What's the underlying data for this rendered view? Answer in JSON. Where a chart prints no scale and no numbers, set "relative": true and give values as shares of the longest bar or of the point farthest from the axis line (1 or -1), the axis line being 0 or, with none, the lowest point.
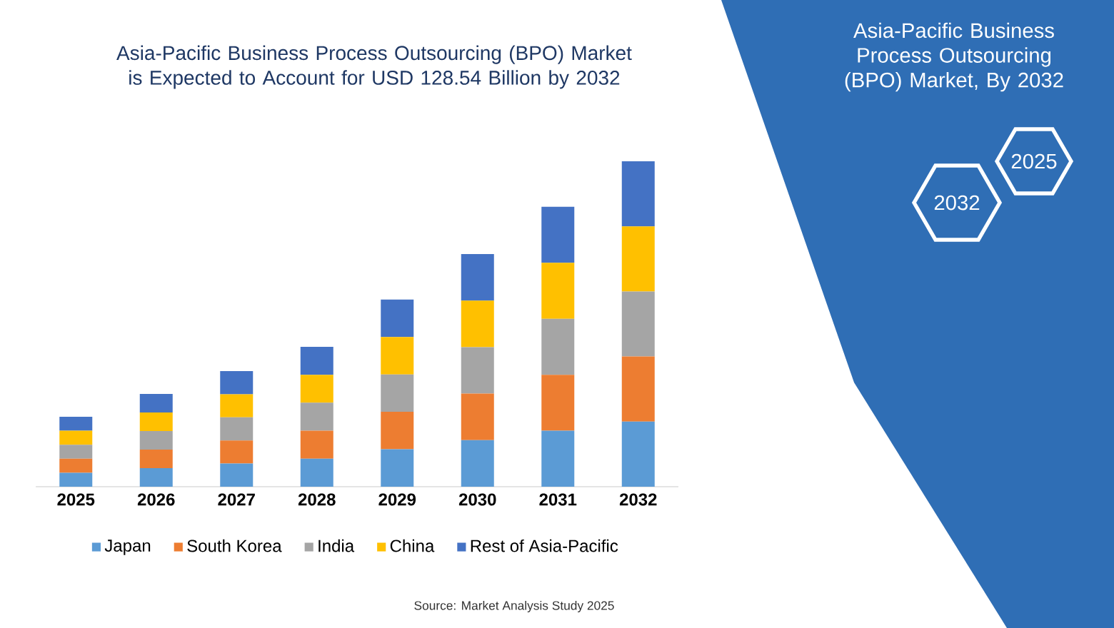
{
  "chart_data": {
    "type": "bar",
    "title": "Asia-Pacific Business Process Outsourcing (BPO) Market is Expected to Account for USD 128.54 Billion by 2032",
    "subtitle": "Asia-Pacific Business Process Outsourcing (BPO) Market, By 2032",
    "categories": [
      "2025",
      "2026",
      "2027",
      "2028",
      "2029",
      "2030",
      "2031",
      "2032"
    ],
    "stacked": true,
    "relative": true,
    "legend": "bottom",
    "series": [
      {
        "name": "Japan",
        "color": "#5b9bd5",
        "values": [
          0.043,
          0.057,
          0.071,
          0.086,
          0.115,
          0.143,
          0.172,
          0.2
        ]
      },
      {
        "name": "South Korea",
        "color": "#ed7d31",
        "values": [
          0.043,
          0.057,
          0.071,
          0.086,
          0.115,
          0.143,
          0.172,
          0.2
        ]
      },
      {
        "name": "India",
        "color": "#a5a5a5",
        "values": [
          0.043,
          0.057,
          0.071,
          0.086,
          0.115,
          0.143,
          0.172,
          0.2
        ]
      },
      {
        "name": "China",
        "color": "#ffc000",
        "values": [
          0.043,
          0.057,
          0.071,
          0.086,
          0.115,
          0.143,
          0.172,
          0.2
        ]
      },
      {
        "name": "Rest of Asia-Pacific",
        "color": "#4472c4",
        "values": [
          0.043,
          0.057,
          0.071,
          0.086,
          0.115,
          0.143,
          0.172,
          0.2
        ]
      }
    ],
    "annotations": [
      "2025",
      "2032",
      "Source: Market Analysis Study 2025"
    ]
  }
}
